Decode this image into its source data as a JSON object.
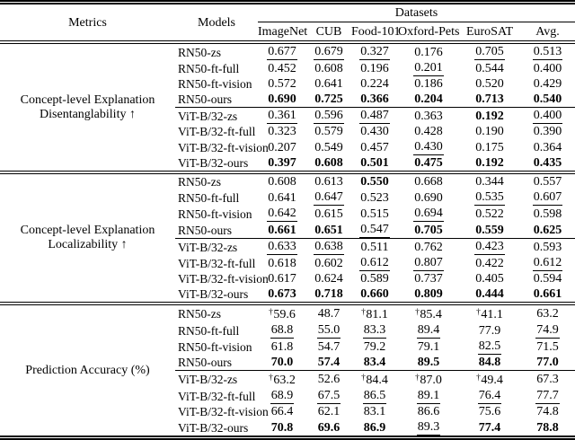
{
  "header": {
    "metrics": "Metrics",
    "models": "Models",
    "datasets": "Datasets",
    "columns": [
      "ImageNet",
      "CUB",
      "Food-101",
      "Oxford-Pets",
      "EuroSAT",
      "Avg."
    ]
  },
  "symbols": {
    "dagger": "†"
  },
  "sections": [
    {
      "metric_lines": [
        "Concept-level Explanation",
        "Disentanglability ↑"
      ],
      "rows": [
        {
          "model": "RN50-zs",
          "cells": [
            {
              "v": "0.677",
              "s": "u"
            },
            {
              "v": "0.679",
              "s": "u"
            },
            {
              "v": "0.327",
              "s": "u"
            },
            {
              "v": "0.176",
              "s": ""
            },
            {
              "v": "0.705",
              "s": "u"
            },
            {
              "v": "0.513",
              "s": "u"
            }
          ]
        },
        {
          "model": "RN50-ft-full",
          "cells": [
            {
              "v": "0.452",
              "s": ""
            },
            {
              "v": "0.608",
              "s": ""
            },
            {
              "v": "0.196",
              "s": ""
            },
            {
              "v": "0.201",
              "s": "u"
            },
            {
              "v": "0.544",
              "s": ""
            },
            {
              "v": "0.400",
              "s": ""
            }
          ]
        },
        {
          "model": "RN50-ft-vision",
          "cells": [
            {
              "v": "0.572",
              "s": ""
            },
            {
              "v": "0.641",
              "s": ""
            },
            {
              "v": "0.224",
              "s": ""
            },
            {
              "v": "0.186",
              "s": ""
            },
            {
              "v": "0.520",
              "s": ""
            },
            {
              "v": "0.429",
              "s": ""
            }
          ]
        },
        {
          "model": "RN50-ours",
          "cells": [
            {
              "v": "0.690",
              "s": "b"
            },
            {
              "v": "0.725",
              "s": "b"
            },
            {
              "v": "0.366",
              "s": "b"
            },
            {
              "v": "0.204",
              "s": "b"
            },
            {
              "v": "0.713",
              "s": "b"
            },
            {
              "v": "0.540",
              "s": "b"
            }
          ]
        },
        {
          "model": "ViT-B/32-zs",
          "cells": [
            {
              "v": "0.361",
              "s": "u"
            },
            {
              "v": "0.596",
              "s": "u"
            },
            {
              "v": "0.487",
              "s": "u"
            },
            {
              "v": "0.363",
              "s": ""
            },
            {
              "v": "0.192",
              "s": "b"
            },
            {
              "v": "0.400",
              "s": "u"
            }
          ]
        },
        {
          "model": "ViT-B/32-ft-full",
          "cells": [
            {
              "v": "0.323",
              "s": ""
            },
            {
              "v": "0.579",
              "s": ""
            },
            {
              "v": "0.430",
              "s": ""
            },
            {
              "v": "0.428",
              "s": ""
            },
            {
              "v": "0.190",
              "s": ""
            },
            {
              "v": "0.390",
              "s": ""
            }
          ]
        },
        {
          "model": "ViT-B/32-ft-vision",
          "cells": [
            {
              "v": "0.207",
              "s": ""
            },
            {
              "v": "0.549",
              "s": ""
            },
            {
              "v": "0.457",
              "s": ""
            },
            {
              "v": "0.430",
              "s": "u"
            },
            {
              "v": "0.175",
              "s": ""
            },
            {
              "v": "0.364",
              "s": ""
            }
          ]
        },
        {
          "model": "ViT-B/32-ours",
          "cells": [
            {
              "v": "0.397",
              "s": "b"
            },
            {
              "v": "0.608",
              "s": "b"
            },
            {
              "v": "0.501",
              "s": "b"
            },
            {
              "v": "0.475",
              "s": "b"
            },
            {
              "v": "0.192",
              "s": "b"
            },
            {
              "v": "0.435",
              "s": "b"
            }
          ]
        }
      ]
    },
    {
      "metric_lines": [
        "Concept-level Explanation",
        "Localizability ↑"
      ],
      "rows": [
        {
          "model": "RN50-zs",
          "cells": [
            {
              "v": "0.608",
              "s": ""
            },
            {
              "v": "0.613",
              "s": ""
            },
            {
              "v": "0.550",
              "s": "b"
            },
            {
              "v": "0.668",
              "s": ""
            },
            {
              "v": "0.344",
              "s": ""
            },
            {
              "v": "0.557",
              "s": ""
            }
          ]
        },
        {
          "model": "RN50-ft-full",
          "cells": [
            {
              "v": "0.641",
              "s": ""
            },
            {
              "v": "0.647",
              "s": "u"
            },
            {
              "v": "0.523",
              "s": ""
            },
            {
              "v": "0.690",
              "s": ""
            },
            {
              "v": "0.535",
              "s": "u"
            },
            {
              "v": "0.607",
              "s": "u"
            }
          ]
        },
        {
          "model": "RN50-ft-vision",
          "cells": [
            {
              "v": "0.642",
              "s": "u"
            },
            {
              "v": "0.615",
              "s": ""
            },
            {
              "v": "0.515",
              "s": ""
            },
            {
              "v": "0.694",
              "s": "u"
            },
            {
              "v": "0.522",
              "s": ""
            },
            {
              "v": "0.598",
              "s": ""
            }
          ]
        },
        {
          "model": "RN50-ours",
          "cells": [
            {
              "v": "0.661",
              "s": "b"
            },
            {
              "v": "0.651",
              "s": "b"
            },
            {
              "v": "0.547",
              "s": "u"
            },
            {
              "v": "0.705",
              "s": "b"
            },
            {
              "v": "0.559",
              "s": "b"
            },
            {
              "v": "0.625",
              "s": "b"
            }
          ]
        },
        {
          "model": "ViT-B/32-zs",
          "cells": [
            {
              "v": "0.633",
              "s": "u"
            },
            {
              "v": "0.638",
              "s": "u"
            },
            {
              "v": "0.511",
              "s": ""
            },
            {
              "v": "0.762",
              "s": ""
            },
            {
              "v": "0.423",
              "s": "u"
            },
            {
              "v": "0.593",
              "s": ""
            }
          ]
        },
        {
          "model": "ViT-B/32-ft-full",
          "cells": [
            {
              "v": "0.618",
              "s": ""
            },
            {
              "v": "0.602",
              "s": ""
            },
            {
              "v": "0.612",
              "s": "u"
            },
            {
              "v": "0.807",
              "s": "u"
            },
            {
              "v": "0.422",
              "s": ""
            },
            {
              "v": "0.612",
              "s": "u"
            }
          ]
        },
        {
          "model": "ViT-B/32-ft-vision",
          "cells": [
            {
              "v": "0.617",
              "s": ""
            },
            {
              "v": "0.624",
              "s": ""
            },
            {
              "v": "0.589",
              "s": ""
            },
            {
              "v": "0.737",
              "s": ""
            },
            {
              "v": "0.405",
              "s": ""
            },
            {
              "v": "0.594",
              "s": ""
            }
          ]
        },
        {
          "model": "ViT-B/32-ours",
          "cells": [
            {
              "v": "0.673",
              "s": "b"
            },
            {
              "v": "0.718",
              "s": "b"
            },
            {
              "v": "0.660",
              "s": "b"
            },
            {
              "v": "0.809",
              "s": "b"
            },
            {
              "v": "0.444",
              "s": "b"
            },
            {
              "v": "0.661",
              "s": "b"
            }
          ]
        }
      ]
    },
    {
      "metric_lines": [
        "Prediction Accuracy (%)"
      ],
      "rows": [
        {
          "model": "RN50-zs",
          "cells": [
            {
              "v": "59.6",
              "s": "",
              "d": true
            },
            {
              "v": "48.7",
              "s": ""
            },
            {
              "v": "81.1",
              "s": "",
              "d": true
            },
            {
              "v": "85.4",
              "s": "",
              "d": true
            },
            {
              "v": "41.1",
              "s": "",
              "d": true
            },
            {
              "v": "63.2",
              "s": ""
            }
          ]
        },
        {
          "model": "RN50-ft-full",
          "cells": [
            {
              "v": "68.8",
              "s": "u"
            },
            {
              "v": "55.0",
              "s": "u"
            },
            {
              "v": "83.3",
              "s": "u"
            },
            {
              "v": "89.4",
              "s": "u"
            },
            {
              "v": "77.9",
              "s": ""
            },
            {
              "v": "74.9",
              "s": "u"
            }
          ]
        },
        {
          "model": "RN50-ft-vision",
          "cells": [
            {
              "v": "61.8",
              "s": ""
            },
            {
              "v": "54.7",
              "s": ""
            },
            {
              "v": "79.2",
              "s": ""
            },
            {
              "v": "79.1",
              "s": ""
            },
            {
              "v": "82.5",
              "s": "u"
            },
            {
              "v": "71.5",
              "s": ""
            }
          ]
        },
        {
          "model": "RN50-ours",
          "cells": [
            {
              "v": "70.0",
              "s": "b"
            },
            {
              "v": "57.4",
              "s": "b"
            },
            {
              "v": "83.4",
              "s": "b"
            },
            {
              "v": "89.5",
              "s": "b"
            },
            {
              "v": "84.8",
              "s": "b"
            },
            {
              "v": "77.0",
              "s": "b"
            }
          ]
        },
        {
          "model": "ViT-B/32-zs",
          "cells": [
            {
              "v": "63.2",
              "s": "",
              "d": true
            },
            {
              "v": "52.6",
              "s": ""
            },
            {
              "v": "84.4",
              "s": "",
              "d": true
            },
            {
              "v": "87.0",
              "s": "",
              "d": true
            },
            {
              "v": "49.4",
              "s": "",
              "d": true
            },
            {
              "v": "67.3",
              "s": ""
            }
          ]
        },
        {
          "model": "ViT-B/32-ft-full",
          "cells": [
            {
              "v": "68.9",
              "s": "u"
            },
            {
              "v": "67.5",
              "s": "u"
            },
            {
              "v": "86.5",
              "s": "u"
            },
            {
              "v": "89.1",
              "s": "u"
            },
            {
              "v": "76.4",
              "s": "u"
            },
            {
              "v": "77.7",
              "s": "u"
            }
          ]
        },
        {
          "model": "ViT-B/32-ft-vision",
          "cells": [
            {
              "v": "66.4",
              "s": ""
            },
            {
              "v": "62.1",
              "s": ""
            },
            {
              "v": "83.1",
              "s": ""
            },
            {
              "v": "86.6",
              "s": ""
            },
            {
              "v": "75.6",
              "s": ""
            },
            {
              "v": "74.8",
              "s": ""
            }
          ]
        },
        {
          "model": "ViT-B/32-ours",
          "cells": [
            {
              "v": "70.8",
              "s": "b"
            },
            {
              "v": "69.6",
              "s": "b"
            },
            {
              "v": "86.9",
              "s": "b"
            },
            {
              "v": "89.3",
              "s": "u"
            },
            {
              "v": "77.4",
              "s": "b"
            },
            {
              "v": "78.8",
              "s": "b"
            }
          ]
        }
      ]
    }
  ]
}
